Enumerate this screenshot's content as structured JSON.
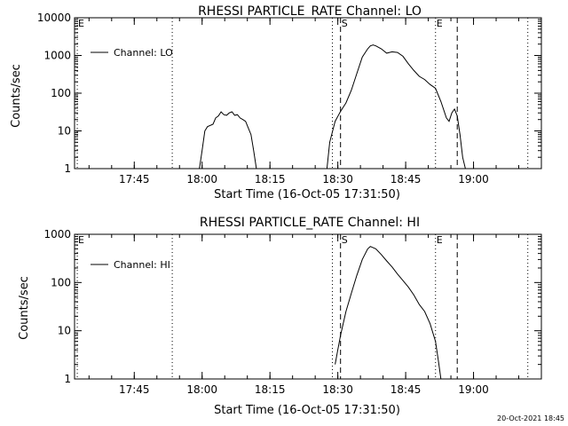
{
  "timestamp": "20-Oct-2021 18:45",
  "chart_data": [
    {
      "type": "line",
      "title": "RHESSI PARTICLE_RATE Channel: LO",
      "xlabel": "Start Time (16-Oct-05 17:31:50)",
      "ylabel": "Counts/sec",
      "yscale": "log",
      "xlim": [
        17.53,
        19.25
      ],
      "ylim": [
        1,
        10000
      ],
      "x_ticks": [
        {
          "t": 17.75,
          "label": "17:45"
        },
        {
          "t": 18.0,
          "label": "18:00"
        },
        {
          "t": 18.25,
          "label": "18:15"
        },
        {
          "t": 18.5,
          "label": "18:30"
        },
        {
          "t": 18.75,
          "label": "18:45"
        },
        {
          "t": 19.0,
          "label": "19:00"
        }
      ],
      "y_ticks": [
        {
          "v": 1,
          "label": "1"
        },
        {
          "v": 10,
          "label": "10"
        },
        {
          "v": 100,
          "label": "100"
        },
        {
          "v": 1000,
          "label": "1000"
        },
        {
          "v": 10000,
          "label": "10000"
        }
      ],
      "legend": {
        "label": "Channel: LO",
        "position": "top-left"
      },
      "markers": [
        {
          "t": 17.54,
          "style": "dotted",
          "label": "E"
        },
        {
          "t": 17.89,
          "style": "dotted",
          "label": ""
        },
        {
          "t": 18.48,
          "style": "dotted",
          "label": ""
        },
        {
          "t": 18.51,
          "style": "dashed",
          "label": "S"
        },
        {
          "t": 18.86,
          "style": "dotted",
          "label": "E"
        },
        {
          "t": 18.94,
          "style": "dashed",
          "label": ""
        },
        {
          "t": 19.2,
          "style": "dotted",
          "label": ""
        }
      ],
      "series": [
        {
          "segments": [
            [
              [
                17.99,
                1
              ],
              [
                18.0,
                3
              ],
              [
                18.01,
                10
              ],
              [
                18.02,
                13
              ],
              [
                18.04,
                15
              ],
              [
                18.05,
                22
              ],
              [
                18.06,
                25
              ],
              [
                18.07,
                32
              ],
              [
                18.08,
                27
              ],
              [
                18.09,
                26
              ],
              [
                18.1,
                30
              ],
              [
                18.11,
                32
              ],
              [
                18.12,
                26
              ],
              [
                18.13,
                27
              ],
              [
                18.14,
                22
              ],
              [
                18.15,
                20
              ],
              [
                18.16,
                18
              ],
              [
                18.17,
                12
              ],
              [
                18.18,
                8
              ],
              [
                18.19,
                3
              ],
              [
                18.2,
                1
              ]
            ],
            [
              [
                18.46,
                1
              ],
              [
                18.47,
                5
              ],
              [
                18.49,
                18
              ],
              [
                18.51,
                33
              ],
              [
                18.53,
                55
              ],
              [
                18.55,
                120
              ],
              [
                18.57,
                330
              ],
              [
                18.59,
                900
              ],
              [
                18.61,
                1500
              ],
              [
                18.62,
                1800
              ],
              [
                18.63,
                1900
              ],
              [
                18.64,
                1800
              ],
              [
                18.66,
                1500
              ],
              [
                18.68,
                1150
              ],
              [
                18.7,
                1250
              ],
              [
                18.72,
                1200
              ],
              [
                18.74,
                950
              ],
              [
                18.76,
                600
              ],
              [
                18.78,
                400
              ],
              [
                18.8,
                280
              ],
              [
                18.82,
                230
              ],
              [
                18.84,
                170
              ],
              [
                18.86,
                135
              ],
              [
                18.88,
                60
              ],
              [
                18.9,
                22
              ],
              [
                18.91,
                18
              ],
              [
                18.92,
                30
              ],
              [
                18.93,
                38
              ],
              [
                18.94,
                25
              ],
              [
                18.95,
                8
              ],
              [
                18.96,
                2
              ],
              [
                18.97,
                1
              ]
            ]
          ]
        }
      ]
    },
    {
      "type": "line",
      "title": "RHESSI PARTICLE_RATE Channel: HI",
      "xlabel": "Start Time (16-Oct-05 17:31:50)",
      "ylabel": "Counts/sec",
      "yscale": "log",
      "xlim": [
        17.53,
        19.25
      ],
      "ylim": [
        1,
        1000
      ],
      "x_ticks": [
        {
          "t": 17.75,
          "label": "17:45"
        },
        {
          "t": 18.0,
          "label": "18:00"
        },
        {
          "t": 18.25,
          "label": "18:15"
        },
        {
          "t": 18.5,
          "label": "18:30"
        },
        {
          "t": 18.75,
          "label": "18:45"
        },
        {
          "t": 19.0,
          "label": "19:00"
        }
      ],
      "y_ticks": [
        {
          "v": 1,
          "label": "1"
        },
        {
          "v": 10,
          "label": "10"
        },
        {
          "v": 100,
          "label": "100"
        },
        {
          "v": 1000,
          "label": "1000"
        }
      ],
      "legend": {
        "label": "Channel: HI",
        "position": "top-left"
      },
      "markers": [
        {
          "t": 17.54,
          "style": "dotted",
          "label": "E"
        },
        {
          "t": 17.89,
          "style": "dotted",
          "label": ""
        },
        {
          "t": 18.48,
          "style": "dotted",
          "label": ""
        },
        {
          "t": 18.51,
          "style": "dashed",
          "label": "S"
        },
        {
          "t": 18.86,
          "style": "dotted",
          "label": "E"
        },
        {
          "t": 18.94,
          "style": "dashed",
          "label": ""
        },
        {
          "t": 19.2,
          "style": "dotted",
          "label": ""
        }
      ],
      "series": [
        {
          "segments": [
            [
              [
                18.49,
                2
              ],
              [
                18.5,
                4
              ],
              [
                18.51,
                8
              ],
              [
                18.53,
                25
              ],
              [
                18.55,
                60
              ],
              [
                18.57,
                140
              ],
              [
                18.59,
                300
              ],
              [
                18.61,
                500
              ],
              [
                18.62,
                560
              ],
              [
                18.64,
                500
              ],
              [
                18.66,
                380
              ],
              [
                18.68,
                280
              ],
              [
                18.7,
                210
              ],
              [
                18.72,
                150
              ],
              [
                18.74,
                110
              ],
              [
                18.76,
                80
              ],
              [
                18.78,
                55
              ],
              [
                18.8,
                35
              ],
              [
                18.82,
                25
              ],
              [
                18.84,
                14
              ],
              [
                18.86,
                6
              ],
              [
                18.87,
                2.5
              ],
              [
                18.88,
                1
              ]
            ]
          ]
        }
      ]
    }
  ]
}
